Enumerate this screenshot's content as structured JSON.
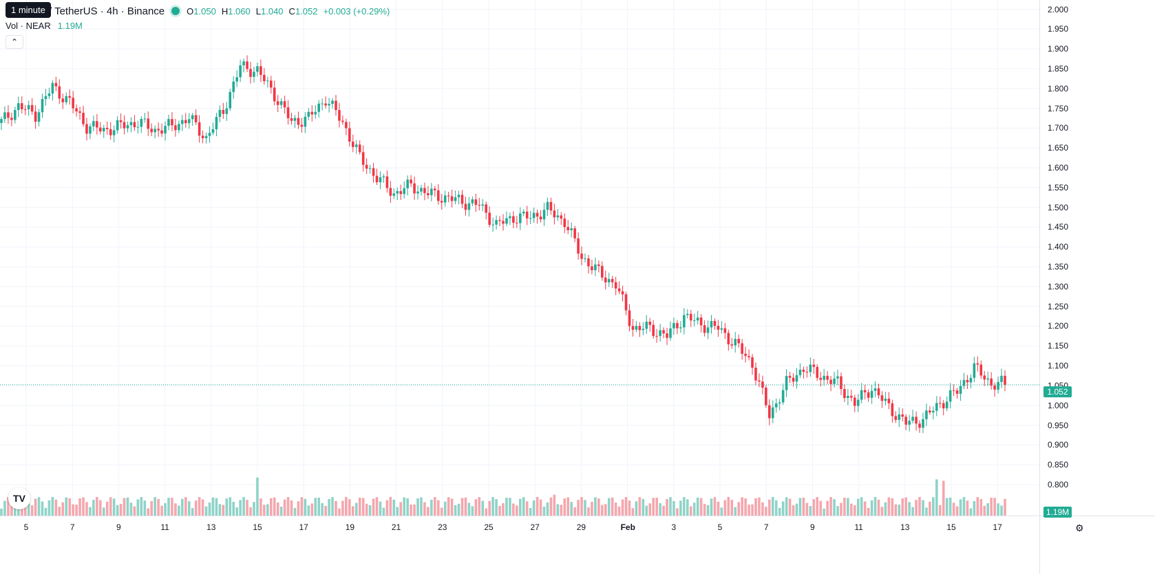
{
  "header": {
    "tooltip": "1 minute",
    "symbol_title": "/ TetherUS · 4h · Binance",
    "ohlc": [
      {
        "k": "O",
        "v": "1.050"
      },
      {
        "k": "H",
        "v": "1.060"
      },
      {
        "k": "L",
        "v": "1.040"
      },
      {
        "k": "C",
        "v": "1.052"
      },
      {
        "k": "",
        "v": "+0.003 (+0.29%)"
      }
    ],
    "volume_label": "Vol · NEAR",
    "volume_value": "1.19M",
    "collapse_icon": "chevron-up-icon",
    "logo": "TV"
  },
  "price_axis": {
    "ticks": [
      "2.000",
      "1.950",
      "1.900",
      "1.850",
      "1.800",
      "1.750",
      "1.700",
      "1.650",
      "1.600",
      "1.550",
      "1.500",
      "1.450",
      "1.400",
      "1.350",
      "1.300",
      "1.250",
      "1.200",
      "1.150",
      "1.100",
      "1.050",
      "1.000",
      "0.950",
      "0.900",
      "0.850",
      "0.800"
    ],
    "last_price": "1.052",
    "volume_tag": "1.19M"
  },
  "time_axis": {
    "ticks": [
      "5",
      "7",
      "9",
      "11",
      "13",
      "15",
      "17",
      "19",
      "21",
      "23",
      "25",
      "27",
      "29",
      "Feb",
      "3",
      "5",
      "7",
      "9",
      "11",
      "13",
      "15",
      "17"
    ]
  },
  "colors": {
    "up": "#22ab94",
    "down": "#f23645",
    "up_vol": "#8fd3c8",
    "down_vol": "#f5a6ad",
    "grid": "#f0f3fa"
  },
  "chart_data": {
    "type": "candlestick",
    "symbol": "NEAR/USDT",
    "interval": "4h",
    "ylim": [
      0.78,
      2.0
    ],
    "anchors": [
      [
        1.71,
        1.72
      ],
      [
        1.75,
        1.76
      ],
      [
        1.73,
        1.74
      ],
      [
        1.8,
        1.81
      ],
      [
        1.76,
        1.77
      ],
      [
        1.7,
        1.71
      ],
      [
        1.69,
        1.7
      ],
      [
        1.7,
        1.71
      ],
      [
        1.71,
        1.72
      ],
      [
        1.69,
        1.7
      ],
      [
        1.7,
        1.71
      ],
      [
        1.72,
        1.73
      ],
      [
        1.67,
        1.68
      ],
      [
        1.74,
        1.75
      ],
      [
        1.85,
        1.86
      ],
      [
        1.84,
        1.85
      ],
      [
        1.78,
        1.79
      ],
      [
        1.71,
        1.72
      ],
      [
        1.72,
        1.73
      ],
      [
        1.77,
        1.78
      ],
      [
        1.71,
        1.72
      ],
      [
        1.62,
        1.63
      ],
      [
        1.57,
        1.58
      ],
      [
        1.53,
        1.54
      ],
      [
        1.55,
        1.56
      ],
      [
        1.53,
        1.54
      ],
      [
        1.52,
        1.53
      ],
      [
        1.51,
        1.52
      ],
      [
        1.5,
        1.51
      ],
      [
        1.45,
        1.46
      ],
      [
        1.47,
        1.48
      ],
      [
        1.47,
        1.48
      ],
      [
        1.49,
        1.5
      ],
      [
        1.46,
        1.47
      ],
      [
        1.37,
        1.38
      ],
      [
        1.33,
        1.34
      ],
      [
        1.3,
        1.31
      ],
      [
        1.19,
        1.2
      ],
      [
        1.19,
        1.2
      ],
      [
        1.17,
        1.18
      ],
      [
        1.22,
        1.23
      ],
      [
        1.2,
        1.21
      ],
      [
        1.19,
        1.2
      ],
      [
        1.15,
        1.16
      ],
      [
        1.1,
        1.11
      ],
      [
        0.97,
        0.98
      ],
      [
        1.05,
        1.06
      ],
      [
        1.09,
        1.1
      ],
      [
        1.07,
        1.08
      ],
      [
        1.05,
        1.06
      ],
      [
        1.0,
        1.01
      ],
      [
        1.04,
        1.05
      ],
      [
        0.99,
        1.0
      ],
      [
        0.95,
        0.96
      ],
      [
        0.96,
        0.97
      ],
      [
        1.0,
        1.01
      ],
      [
        1.03,
        1.04
      ],
      [
        1.09,
        1.1
      ],
      [
        1.05,
        1.06
      ],
      [
        1.05,
        1.06
      ]
    ],
    "volume_spikes": {
      "index": [
        75,
        162,
        243,
        274,
        276
      ],
      "value": [
        0.82,
        0.45,
        0.4,
        0.78,
        0.75
      ]
    },
    "current_price": 1.052
  }
}
